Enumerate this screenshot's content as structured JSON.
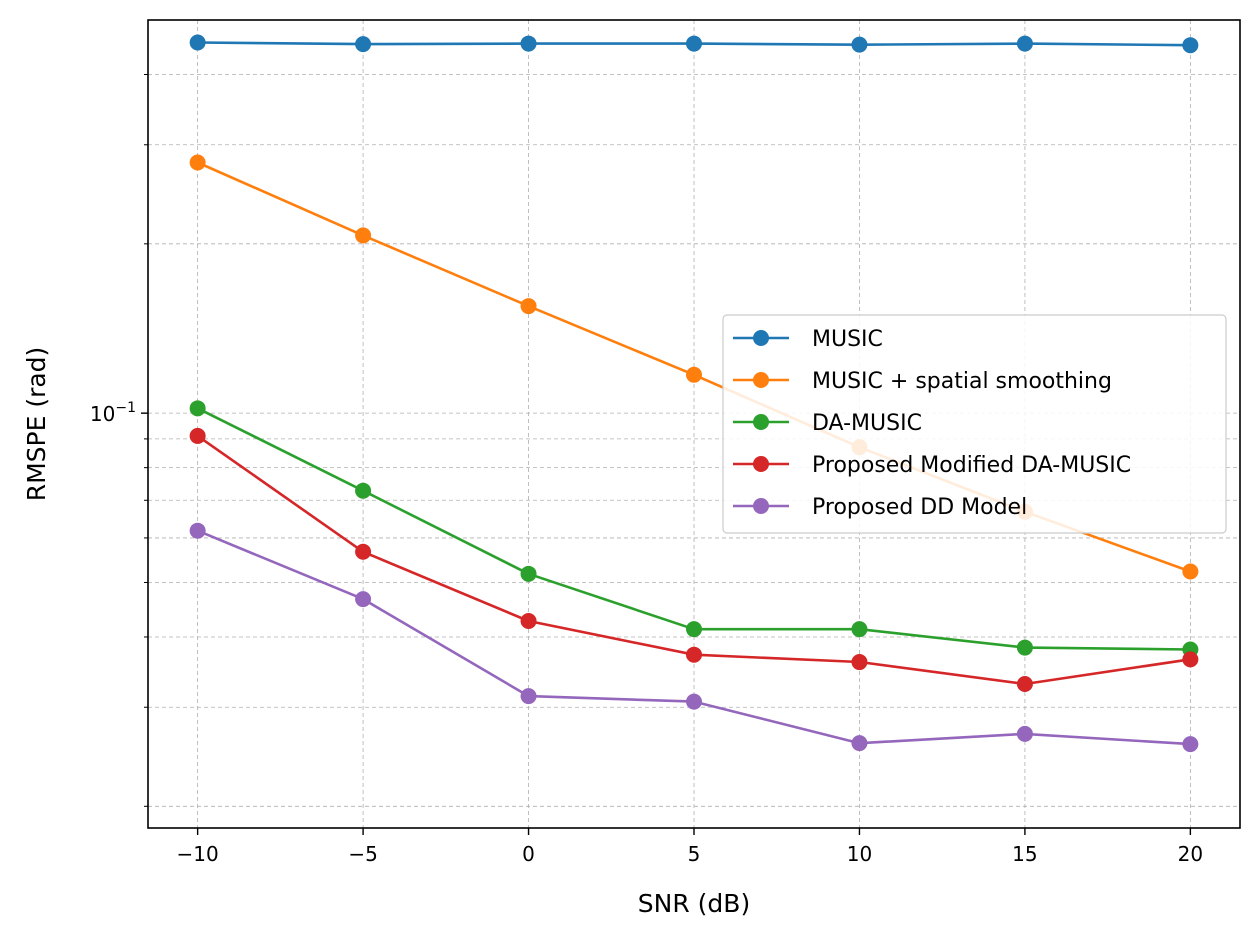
{
  "chart_data": {
    "type": "line",
    "xlabel": "SNR (dB)",
    "ylabel": "RMSPE (rad)",
    "x": [
      -10,
      -5,
      0,
      5,
      10,
      15,
      20
    ],
    "xlim": [
      -11.5,
      21.5
    ],
    "ylim": [
      0.0183,
      0.5
    ],
    "yscale": "log",
    "xticks": [
      -10,
      -5,
      0,
      5,
      10,
      15,
      20
    ],
    "xtick_labels": [
      "−10",
      "−5",
      "0",
      "5",
      "10",
      "15",
      "20"
    ],
    "ytick_base": "10",
    "ytick_exponent": "−1",
    "grid": true,
    "legend_position": "center-right",
    "series": [
      {
        "name": "MUSIC",
        "color": "#1f77b4",
        "values": [
          0.456,
          0.453,
          0.454,
          0.454,
          0.452,
          0.454,
          0.451
        ]
      },
      {
        "name": "MUSIC + spatial smoothing",
        "color": "#ff7f0e",
        "values": [
          0.279,
          0.207,
          0.155,
          0.117,
          0.087,
          0.0668,
          0.0523
        ]
      },
      {
        "name": "DA-MUSIC",
        "color": "#2ca02c",
        "values": [
          0.102,
          0.0728,
          0.0518,
          0.0413,
          0.0413,
          0.0383,
          0.038
        ]
      },
      {
        "name": "Proposed Modified DA-MUSIC",
        "color": "#d62728",
        "values": [
          0.0911,
          0.0567,
          0.0427,
          0.0372,
          0.0361,
          0.033,
          0.0365
        ]
      },
      {
        "name": "Proposed DD Model",
        "color": "#9467bd",
        "values": [
          0.0618,
          0.0467,
          0.0314,
          0.0307,
          0.0259,
          0.0269,
          0.0258
        ]
      }
    ]
  }
}
